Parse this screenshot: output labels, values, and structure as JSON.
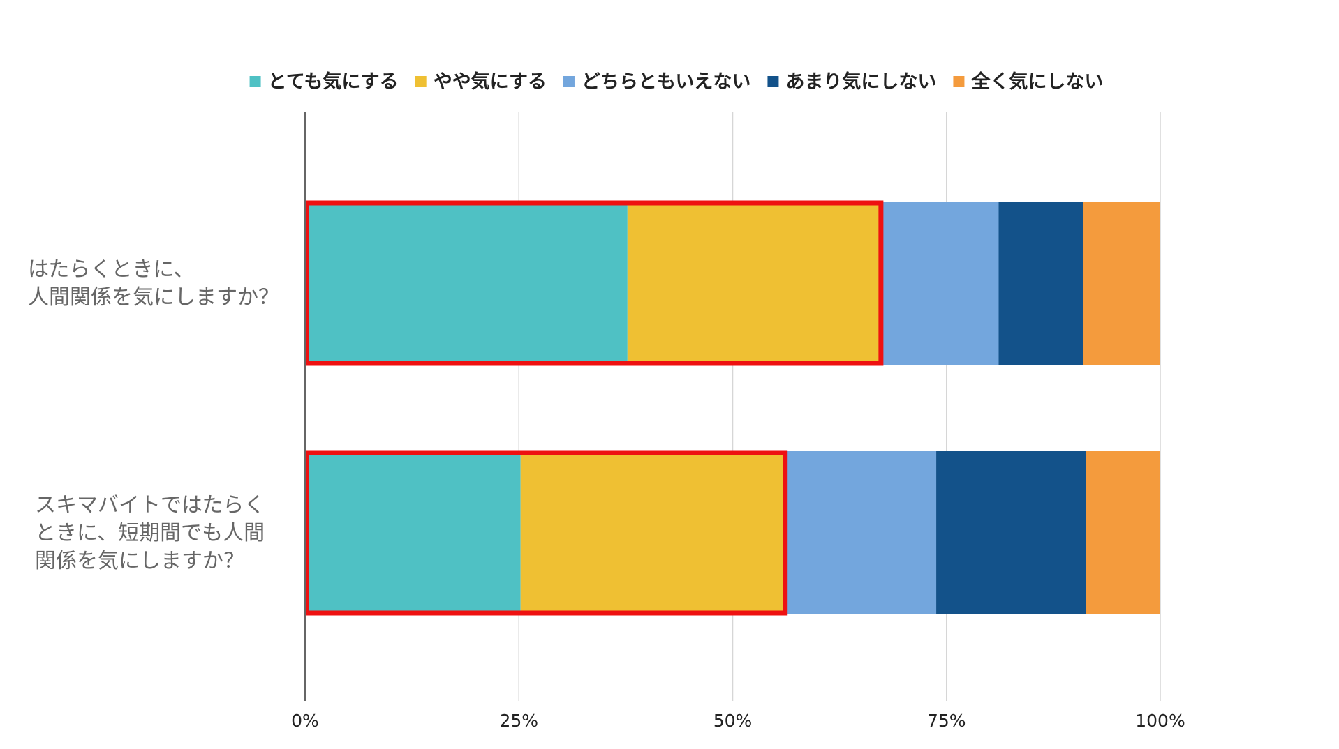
{
  "chart_data": {
    "type": "bar",
    "orientation": "horizontal",
    "stacked": "percent",
    "categories": [
      [
        "はたらくときに、",
        "人間関係を気にしますか？"
      ],
      [
        "スキマバイトではたらく",
        "ときに、短期間でも人間",
        "関係を気にしますか？"
      ]
    ],
    "series": [
      {
        "name": "とても気にする",
        "color": "#4fc1c4",
        "values": [
          37.7,
          25.2
        ]
      },
      {
        "name": "やや気にする",
        "color": "#efc033",
        "values": [
          29.8,
          31.1
        ]
      },
      {
        "name": "どちらともいえない",
        "color": "#73a6dd",
        "values": [
          13.6,
          17.5
        ]
      },
      {
        "name": "あまり気にしない",
        "color": "#13528a",
        "values": [
          9.9,
          17.5
        ]
      },
      {
        "name": "全く気にしない",
        "color": "#f49b3d",
        "values": [
          9.0,
          8.7
        ]
      }
    ],
    "xlim": [
      0,
      100
    ],
    "xticks": [
      "0%",
      "25%",
      "50%",
      "75%",
      "100%"
    ],
    "grid": true,
    "legend_position": "top",
    "highlight": {
      "color": "#ee1111",
      "series_covered": [
        "とても気にする",
        "やや気にする"
      ]
    }
  }
}
